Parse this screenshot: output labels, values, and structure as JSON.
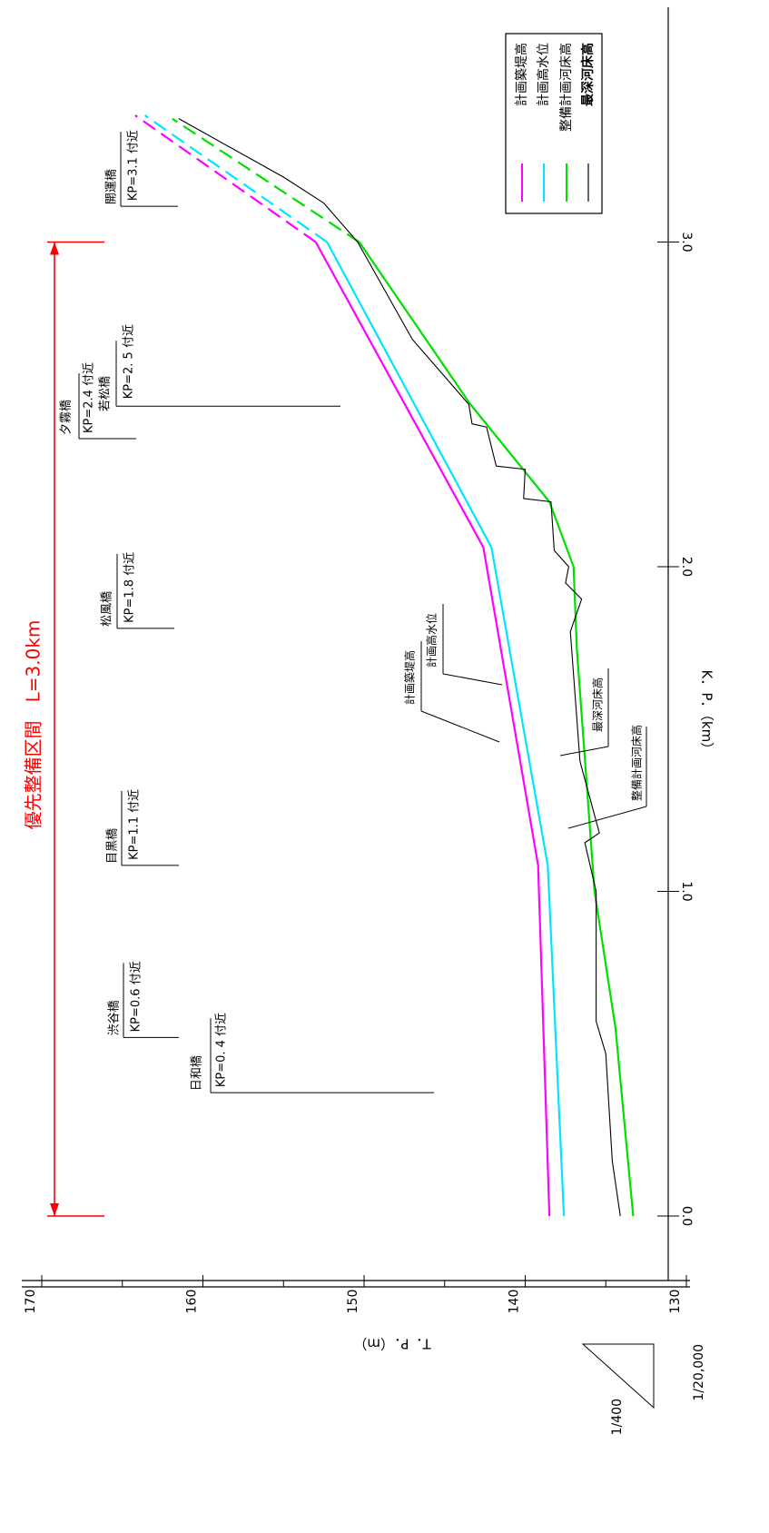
{
  "chart_data": {
    "type": "line",
    "orientation": "rotated-90-counterclockwise",
    "xlabel": "K．P．（km）",
    "ylabel": "T．P．（m）",
    "xticks": [
      "0.0",
      "1.0",
      "2.0",
      "3.0"
    ],
    "yticks": [
      "130",
      "140",
      "150",
      "160",
      "170"
    ],
    "xlim": [
      -0.3,
      3.55
    ],
    "ylim": [
      129,
      171
    ],
    "scale": {
      "horizontal": "1/20,000",
      "vertical": "1/400"
    },
    "priority_section": {
      "label": "優先整備区間　L=3.0km",
      "from_kp": 0.0,
      "to_kp": 3.0,
      "color": "#ff0000"
    },
    "legend": {
      "position": "top-right",
      "items": [
        {
          "label": "計画築堤高",
          "color": "#ff00ff",
          "bold": false
        },
        {
          "label": "計画高水位",
          "color": "#00e5ff",
          "bold": false
        },
        {
          "label": "整備計画河床高",
          "color": "#00e000",
          "bold": false
        },
        {
          "label": "最深河床高",
          "color": "#000000",
          "bold": true
        }
      ]
    },
    "series": [
      {
        "name": "計画築堤高",
        "color": "#ff00ff",
        "x": [
          0.0,
          1.08,
          2.06,
          3.0
        ],
        "y": [
          138.5,
          139.2,
          142.6,
          153.0
        ],
        "dashed_x": [
          3.0,
          3.39
        ],
        "dashed_y": [
          153.0,
          164.2
        ]
      },
      {
        "name": "計画高水位",
        "color": "#00e5ff",
        "x": [
          0.0,
          1.08,
          2.06,
          3.0
        ],
        "y": [
          137.6,
          138.6,
          142.1,
          152.3
        ],
        "dashed_x": [
          3.0,
          3.39
        ],
        "dashed_y": [
          152.3,
          163.6
        ]
      },
      {
        "name": "整備計画河床高",
        "color": "#00e000",
        "x": [
          0.0,
          0.58,
          1.0,
          1.75,
          2.0,
          2.2,
          2.5,
          3.0
        ],
        "y": [
          133.3,
          134.4,
          135.7,
          136.8,
          137.0,
          138.5,
          143.4,
          150.3
        ],
        "dashed_x": [
          3.0,
          3.38
        ],
        "dashed_y": [
          150.3,
          161.9
        ]
      },
      {
        "name": "最深河床高",
        "color": "#000000",
        "x": [
          0.0,
          0.17,
          0.5,
          0.6,
          1.0,
          1.15,
          1.18,
          1.4,
          1.6,
          1.8,
          1.9,
          1.95,
          2.0,
          2.05,
          2.2,
          2.21,
          2.3,
          2.31,
          2.43,
          2.44,
          2.5,
          2.7,
          3.0,
          3.12,
          3.2,
          3.38
        ],
        "y": [
          134.1,
          134.6,
          135.0,
          135.6,
          135.6,
          136.3,
          135.4,
          136.6,
          136.9,
          137.2,
          136.5,
          137.5,
          137.3,
          138.2,
          138.4,
          140.1,
          140.0,
          141.8,
          142.4,
          143.3,
          143.5,
          147.0,
          150.4,
          152.5,
          155.0,
          161.5
        ]
      }
    ],
    "line_labels": [
      {
        "text": "計画築堤高",
        "series": "計画築堤高"
      },
      {
        "text": "計画高水位",
        "series": "計画高水位"
      },
      {
        "text": "最深河床高",
        "series": "最深河床高"
      },
      {
        "text": "整備計画河床高",
        "series": "整備計画河床高"
      }
    ],
    "bridges": [
      {
        "name": "日和橋",
        "kp_label": "KP=0. 4 付近",
        "kp": 0.38
      },
      {
        "name": "渋谷橋",
        "kp_label": "KP=0.6 付近",
        "kp": 0.55
      },
      {
        "name": "目黒橋",
        "kp_label": "KP=1.1 付近",
        "kp": 1.08
      },
      {
        "name": "松風橋",
        "kp_label": "KP=1.8 付近",
        "kp": 1.81
      },
      {
        "name": "夕霧橋",
        "kp_label": "KP=2.4 付近",
        "kp": 2.4
      },
      {
        "name": "若松橋",
        "kp_label": "KP=2. 5 付近",
        "kp": 2.5
      },
      {
        "name": "開運橋",
        "kp_label": "KP=3.1 付近",
        "kp": 3.11
      }
    ]
  }
}
